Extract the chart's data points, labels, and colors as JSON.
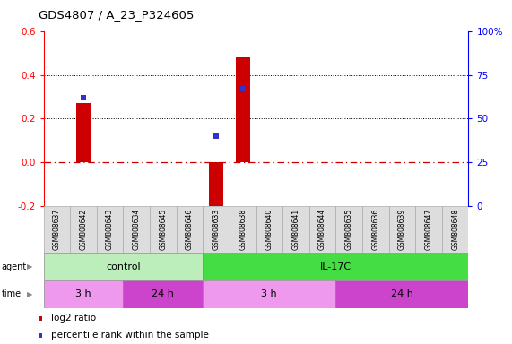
{
  "title": "GDS4807 / A_23_P324605",
  "samples": [
    "GSM808637",
    "GSM808642",
    "GSM808643",
    "GSM808634",
    "GSM808645",
    "GSM808646",
    "GSM808633",
    "GSM808638",
    "GSM808640",
    "GSM808641",
    "GSM808644",
    "GSM808635",
    "GSM808636",
    "GSM808639",
    "GSM808647",
    "GSM808648"
  ],
  "log2_ratio": [
    0.0,
    0.27,
    0.0,
    0.0,
    0.0,
    0.0,
    -0.25,
    0.48,
    0.0,
    0.0,
    0.0,
    0.0,
    0.0,
    0.0,
    0.0,
    0.0
  ],
  "percentile_pct": [
    null,
    62,
    null,
    null,
    null,
    null,
    40,
    67,
    null,
    null,
    null,
    null,
    null,
    null,
    null,
    null
  ],
  "ylim": [
    -0.2,
    0.6
  ],
  "ylim_right": [
    0,
    100
  ],
  "yticks_left": [
    -0.2,
    0.0,
    0.2,
    0.4,
    0.6
  ],
  "yticks_right": [
    0,
    25,
    50,
    75,
    100
  ],
  "yticks_right_labels": [
    "0",
    "25",
    "50",
    "75",
    "100%"
  ],
  "bar_color": "#cc0000",
  "dot_color": "#3333cc",
  "hline_color": "#cc0000",
  "grid_color": "#000000",
  "agent_groups": [
    {
      "label": "control",
      "start": 0,
      "end": 6,
      "color": "#bbeebb"
    },
    {
      "label": "IL-17C",
      "start": 6,
      "end": 16,
      "color": "#44dd44"
    }
  ],
  "time_groups": [
    {
      "label": "3 h",
      "start": 0,
      "end": 3,
      "color": "#ee99ee"
    },
    {
      "label": "24 h",
      "start": 3,
      "end": 6,
      "color": "#cc44cc"
    },
    {
      "label": "3 h",
      "start": 6,
      "end": 11,
      "color": "#ee99ee"
    },
    {
      "label": "24 h",
      "start": 11,
      "end": 16,
      "color": "#cc44cc"
    }
  ],
  "sample_bg": "#dddddd",
  "sample_border": "#aaaaaa"
}
